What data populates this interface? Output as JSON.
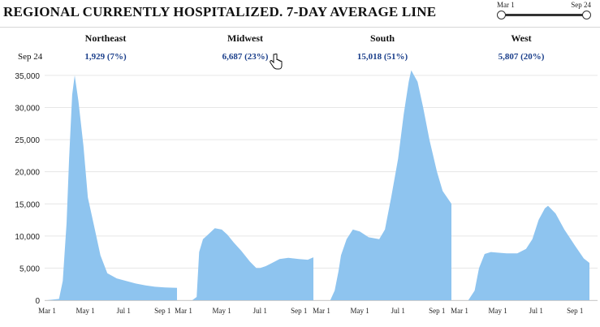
{
  "title": "REGIONAL CURRENTLY HOSPITALIZED. 7-DAY AVERAGE LINE",
  "slider": {
    "start_label": "Mar 1",
    "end_label": "Sep 24"
  },
  "date_label": "Sep 24",
  "colors": {
    "area": "#8ec4ef",
    "value_text": "#1b3f8b",
    "grid": "#e6e6e6"
  },
  "regions": [
    {
      "name": "Northeast",
      "value": "1,929 (7%)"
    },
    {
      "name": "Midwest",
      "value": "6,687 (23%)"
    },
    {
      "name": "South",
      "value": "15,018 (51%)"
    },
    {
      "name": "West",
      "value": "5,807 (20%)"
    }
  ],
  "chart_data": {
    "type": "area",
    "title": "REGIONAL CURRENTLY HOSPITALIZED. 7-DAY AVERAGE LINE",
    "xlabel": "",
    "ylabel": "",
    "ylim": [
      0,
      36000
    ],
    "yticks": [
      0,
      5000,
      10000,
      15000,
      20000,
      25000,
      30000,
      35000
    ],
    "ytick_labels": [
      "0",
      "5,000",
      "10,000",
      "15,000",
      "20,000",
      "25,000",
      "30,000",
      "35,000"
    ],
    "xlim": [
      "Mar 1",
      "Sep 24"
    ],
    "xtick_labels": [
      "Mar 1",
      "May 1",
      "Jul 1",
      "Sep 1"
    ],
    "grid": true,
    "panels": [
      {
        "name": "Northeast",
        "x": [
          "Mar 1",
          "Mar 20",
          "Mar 26",
          "Apr 1",
          "Apr 5",
          "Apr 10",
          "Apr 14",
          "Apr 20",
          "Apr 28",
          "May 5",
          "May 15",
          "May 25",
          "Jun 5",
          "Jun 20",
          "Jul 5",
          "Jul 20",
          "Aug 5",
          "Aug 20",
          "Sep 5",
          "Sep 24"
        ],
        "values": [
          0,
          200,
          3000,
          12000,
          22000,
          32000,
          35000,
          31000,
          24000,
          16000,
          11500,
          7000,
          4200,
          3400,
          3000,
          2600,
          2300,
          2100,
          2000,
          1929
        ]
      },
      {
        "name": "Midwest",
        "x": [
          "Mar 1",
          "Mar 15",
          "Mar 22",
          "Mar 26",
          "Apr 1",
          "Apr 10",
          "Apr 20",
          "May 1",
          "May 10",
          "May 20",
          "Jun 1",
          "Jun 15",
          "Jun 25",
          "Jul 1",
          "Jul 10",
          "Jul 20",
          "Aug 1",
          "Aug 15",
          "Sep 1",
          "Sep 15",
          "Sep 24"
        ],
        "values": [
          0,
          0,
          500,
          7500,
          9500,
          10300,
          11200,
          11000,
          10200,
          9000,
          7700,
          6000,
          5000,
          5000,
          5300,
          5800,
          6400,
          6600,
          6400,
          6300,
          6687
        ]
      },
      {
        "name": "South",
        "x": [
          "Mar 1",
          "Mar 15",
          "Mar 22",
          "Mar 28",
          "Apr 1",
          "Apr 10",
          "Apr 20",
          "May 1",
          "May 15",
          "Jun 1",
          "Jun 10",
          "Jun 20",
          "Jul 1",
          "Jul 10",
          "Jul 18",
          "Jul 22",
          "Aug 1",
          "Aug 10",
          "Aug 20",
          "Sep 1",
          "Sep 10",
          "Sep 24"
        ],
        "values": [
          0,
          0,
          1500,
          4500,
          7000,
          9500,
          11000,
          10700,
          9800,
          9500,
          11000,
          16000,
          22000,
          29000,
          34000,
          35800,
          34000,
          30000,
          25000,
          20000,
          17000,
          15018
        ]
      },
      {
        "name": "West",
        "x": [
          "Mar 1",
          "Mar 15",
          "Mar 25",
          "Apr 1",
          "Apr 10",
          "Apr 20",
          "May 1",
          "May 15",
          "Jun 1",
          "Jun 15",
          "Jun 25",
          "Jul 5",
          "Jul 15",
          "Jul 20",
          "Aug 1",
          "Aug 15",
          "Sep 1",
          "Sep 15",
          "Sep 24"
        ],
        "values": [
          0,
          0,
          1500,
          5000,
          7200,
          7500,
          7400,
          7300,
          7300,
          8000,
          9500,
          12500,
          14300,
          14700,
          13500,
          11000,
          8500,
          6500,
          5807
        ]
      }
    ]
  }
}
